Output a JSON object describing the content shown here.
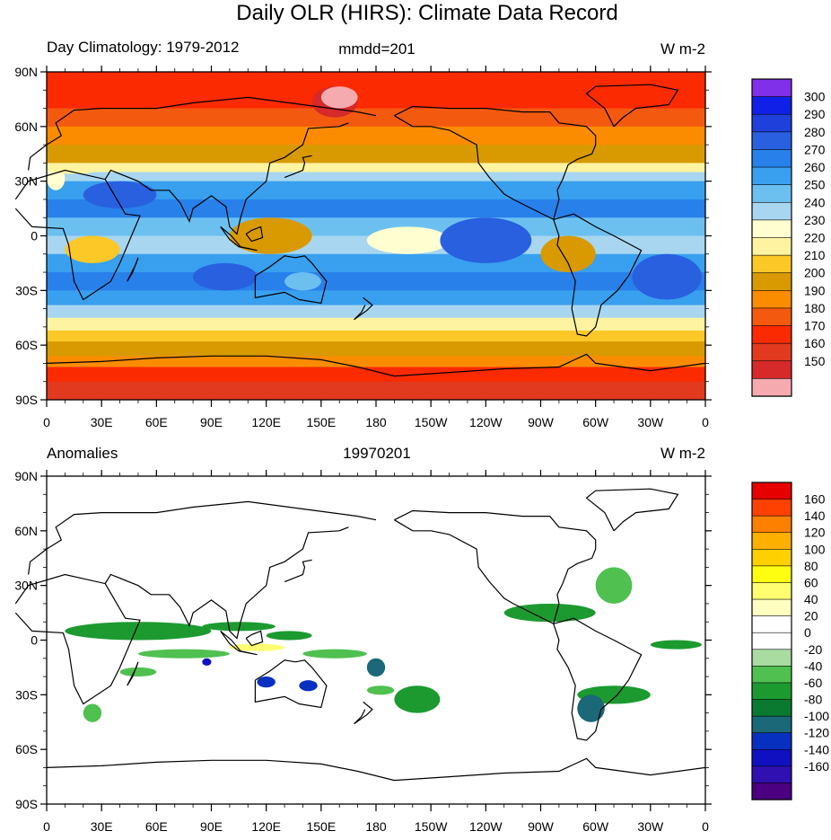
{
  "title": "Daily OLR (HIRS): Climate Data Record",
  "chart_data": [
    {
      "type": "heatmap",
      "left_label": "Day Climatology: 1979-2012",
      "center_label": "mmdd=201",
      "units": "W m-2",
      "xticks": [
        "0",
        "30E",
        "60E",
        "90E",
        "120E",
        "150E",
        "180",
        "150W",
        "120W",
        "90W",
        "60W",
        "30W",
        "0"
      ],
      "yticks": [
        "90N",
        "60N",
        "30N",
        "0",
        "30S",
        "60S",
        "90S"
      ],
      "colorbar": {
        "labels": [
          "300",
          "290",
          "280",
          "270",
          "260",
          "250",
          "240",
          "230",
          "220",
          "210",
          "200",
          "190",
          "180",
          "170",
          "160",
          "150"
        ],
        "colors": [
          "#f5aab0",
          "#d62a2a",
          "#e23a1e",
          "#fb2a00",
          "#f35a10",
          "#fb8c00",
          "#d89a00",
          "#fbc828",
          "#fdf3a0",
          "#fefed0",
          "#a8d6f0",
          "#6cc0f0",
          "#38a0ee",
          "#2880ea",
          "#2860e0",
          "#2040dc",
          "#1020e6",
          "#8030e8"
        ],
        "note": "bins from lowest (bottom) to highest (top)"
      },
      "bands": [
        {
          "lat": [
            90,
            80
          ],
          "value": 170
        },
        {
          "lat": [
            80,
            70
          ],
          "value": 175
        },
        {
          "lat": [
            70,
            60
          ],
          "value": 185
        },
        {
          "lat": [
            60,
            50
          ],
          "value": 195
        },
        {
          "lat": [
            50,
            40
          ],
          "value": 205
        },
        {
          "lat": [
            40,
            35
          ],
          "value": 222
        },
        {
          "lat": [
            35,
            30
          ],
          "value": 245
        },
        {
          "lat": [
            30,
            20
          ],
          "value": 265
        },
        {
          "lat": [
            20,
            10
          ],
          "value": 275
        },
        {
          "lat": [
            10,
            0
          ],
          "value": 255
        },
        {
          "lat": [
            0,
            -10
          ],
          "value": 245
        },
        {
          "lat": [
            -10,
            -20
          ],
          "value": 260
        },
        {
          "lat": [
            -20,
            -30
          ],
          "value": 272
        },
        {
          "lat": [
            -30,
            -38
          ],
          "value": 262
        },
        {
          "lat": [
            -38,
            -45
          ],
          "value": 245
        },
        {
          "lat": [
            -45,
            -52
          ],
          "value": 222
        },
        {
          "lat": [
            -52,
            -58
          ],
          "value": 212
        },
        {
          "lat": [
            -58,
            -66
          ],
          "value": 203
        },
        {
          "lat": [
            -66,
            -72
          ],
          "value": 193
        },
        {
          "lat": [
            -72,
            -80
          ],
          "value": 178
        },
        {
          "lat": [
            -80,
            -90
          ],
          "value": 168
        }
      ],
      "regions": [
        {
          "lon": [
            145,
            170
          ],
          "lat": [
            82,
            65
          ],
          "value": 155
        },
        {
          "lon": [
            150,
            170
          ],
          "lat": [
            82,
            70
          ],
          "value": 148
        },
        {
          "lon": [
            0,
            10
          ],
          "lat": [
            38,
            25
          ],
          "value": 235
        },
        {
          "lon": [
            0,
            30
          ],
          "lat": [
            40,
            34
          ],
          "value": 228
        },
        {
          "lon": [
            100,
            145
          ],
          "lat": [
            10,
            -10
          ],
          "value": 205
        },
        {
          "lon": [
            10,
            40
          ],
          "lat": [
            0,
            -15
          ],
          "value": 212
        },
        {
          "lon": [
            270,
            300
          ],
          "lat": [
            0,
            -20
          ],
          "value": 208
        },
        {
          "lon": [
            20,
            60
          ],
          "lat": [
            30,
            15
          ],
          "value": 288
        },
        {
          "lon": [
            80,
            115
          ],
          "lat": [
            -15,
            -30
          ],
          "value": 284
        },
        {
          "lon": [
            175,
            220
          ],
          "lat": [
            5,
            -10
          ],
          "value": 232
        },
        {
          "lon": [
            215,
            265
          ],
          "lat": [
            10,
            -15
          ],
          "value": 280
        },
        {
          "lon": [
            320,
            358
          ],
          "lat": [
            -10,
            -35
          ],
          "value": 283
        },
        {
          "lon": [
            130,
            150
          ],
          "lat": [
            -20,
            -30
          ],
          "value": 250
        }
      ]
    },
    {
      "type": "heatmap",
      "left_label": "Anomalies",
      "center_label": "19970201",
      "units": "W m-2",
      "xticks": [
        "0",
        "30E",
        "60E",
        "90E",
        "120E",
        "150E",
        "180",
        "150W",
        "120W",
        "90W",
        "60W",
        "30W",
        "0"
      ],
      "yticks": [
        "90N",
        "60N",
        "30N",
        "0",
        "30S",
        "60S",
        "90S"
      ],
      "colorbar": {
        "labels": [
          "160",
          "140",
          "120",
          "100",
          "80",
          "60",
          "40",
          "20",
          "0",
          "-20",
          "-40",
          "-60",
          "-80",
          "-100",
          "-120",
          "-140",
          "-160"
        ],
        "colors": [
          "#4a0080",
          "#3010b0",
          "#1010c0",
          "#0830c0",
          "#1a6878",
          "#0a7a30",
          "#1c9a30",
          "#50c050",
          "#a8dca0",
          "#ffffff",
          "#ffffff",
          "#fefec0",
          "#fefe70",
          "#fefe10",
          "#fed000",
          "#feb000",
          "#fe8000",
          "#fe4000",
          "#e60000"
        ],
        "note": "bins from lowest (bottom) to highest (top)"
      },
      "regions": [
        {
          "lon": [
            0,
            12
          ],
          "lat": [
            55,
            45
          ],
          "value": 35
        },
        {
          "lon": [
            5,
            25
          ],
          "lat": [
            50,
            40
          ],
          "value": 30
        },
        {
          "lon": [
            95,
            105
          ],
          "lat": [
            55,
            45
          ],
          "value": 25
        },
        {
          "lon": [
            10,
            40
          ],
          "lat": [
            -20,
            -35
          ],
          "value": 25
        },
        {
          "lon": [
            35,
            60
          ],
          "lat": [
            -28,
            -35
          ],
          "value": 20
        },
        {
          "lon": [
            80,
            95
          ],
          "lat": [
            -15,
            -25
          ],
          "value": 25
        },
        {
          "lon": [
            100,
            130
          ],
          "lat": [
            -2,
            -6
          ],
          "value": 60
        },
        {
          "lon": [
            160,
            185
          ],
          "lat": [
            -15,
            -25
          ],
          "value": 30
        },
        {
          "lon": [
            180,
            215
          ],
          "lat": [
            20,
            10
          ],
          "value": 25
        },
        {
          "lon": [
            200,
            210
          ],
          "lat": [
            40,
            30
          ],
          "value": 25
        },
        {
          "lon": [
            280,
            300
          ],
          "lat": [
            -25,
            -40
          ],
          "value": 30
        },
        {
          "lon": [
            325,
            355
          ],
          "lat": [
            -5,
            -15
          ],
          "value": 25
        },
        {
          "lon": [
            245,
            260
          ],
          "lat": [
            25,
            15
          ],
          "value": 25
        },
        {
          "lon": [
            10,
            90
          ],
          "lat": [
            10,
            0
          ],
          "value": -50
        },
        {
          "lon": [
            50,
            100
          ],
          "lat": [
            -5,
            -10
          ],
          "value": -40
        },
        {
          "lon": [
            85,
            125
          ],
          "lat": [
            10,
            5
          ],
          "value": -55
        },
        {
          "lon": [
            120,
            145
          ],
          "lat": [
            5,
            0
          ],
          "value": -45
        },
        {
          "lon": [
            140,
            175
          ],
          "lat": [
            -5,
            -10
          ],
          "value": -40
        },
        {
          "lon": [
            85,
            90
          ],
          "lat": [
            -10,
            -14
          ],
          "value": -130
        },
        {
          "lon": [
            115,
            125
          ],
          "lat": [
            -20,
            -26
          ],
          "value": -110
        },
        {
          "lon": [
            138,
            148
          ],
          "lat": [
            -22,
            -28
          ],
          "value": -105
        },
        {
          "lon": [
            175,
            185
          ],
          "lat": [
            -10,
            -20
          ],
          "value": -100
        },
        {
          "lon": [
            250,
            300
          ],
          "lat": [
            20,
            10
          ],
          "value": -55
        },
        {
          "lon": [
            290,
            330
          ],
          "lat": [
            -25,
            -35
          ],
          "value": -60
        },
        {
          "lon": [
            290,
            305
          ],
          "lat": [
            -30,
            -45
          ],
          "value": -85
        },
        {
          "lon": [
            330,
            358
          ],
          "lat": [
            0,
            -5
          ],
          "value": -55
        },
        {
          "lon": [
            20,
            30
          ],
          "lat": [
            -35,
            -45
          ],
          "value": -30
        },
        {
          "lon": [
            190,
            215
          ],
          "lat": [
            -25,
            -40
          ],
          "value": -45
        },
        {
          "lon": [
            300,
            320
          ],
          "lat": [
            40,
            20
          ],
          "value": -40
        },
        {
          "lon": [
            40,
            60
          ],
          "lat": [
            -15,
            -20
          ],
          "value": -35
        },
        {
          "lon": [
            175,
            190
          ],
          "lat": [
            -25,
            -30
          ],
          "value": -35
        }
      ]
    }
  ]
}
